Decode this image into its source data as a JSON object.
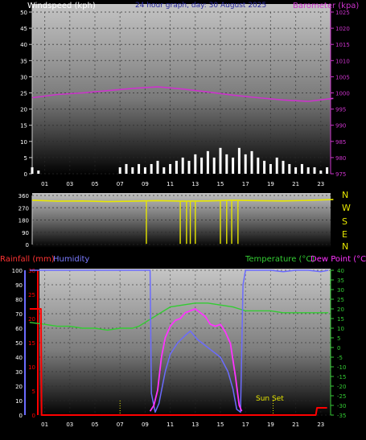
{
  "header": {
    "left": "Windspeed (kph)",
    "center": "24 hour graph, day:   30 August 2025",
    "right": "Barometer (kpa)"
  },
  "colors": {
    "windspeed": "#ffffff",
    "barometer": "#cc33cc",
    "wind_direction": "#e6e600",
    "rainfall": "#ff0000",
    "humidity": "#6b6bff",
    "temperature": "#33cc33",
    "dew_point": "#ff33ff",
    "sun_marker": "#e6e600"
  },
  "panel3_labels": {
    "rainfall": "Rainfall (mm)",
    "humidity": "Humidity",
    "temperature": "Temperature (°C)",
    "dew_point": "Dew Point (°C)",
    "sun_set": "Sun Set"
  },
  "compass_labels": [
    "N",
    "W",
    "S",
    "E",
    "N"
  ],
  "chart_data": [
    {
      "type": "line",
      "x_ticks": [
        "01",
        "03",
        "05",
        "07",
        "09",
        "11",
        "13",
        "15",
        "17",
        "19",
        "21",
        "23"
      ],
      "ylim_left": [
        0,
        50
      ],
      "yticks_left": [
        0,
        5,
        10,
        15,
        20,
        25,
        30,
        35,
        40,
        45,
        50
      ],
      "ylim_right": [
        975,
        1025
      ],
      "yticks_right": [
        975,
        980,
        985,
        990,
        995,
        1000,
        1005,
        1010,
        1015,
        1020,
        1025
      ],
      "series": [
        {
          "name": "Windspeed (kph)",
          "axis": "left",
          "x": [
            0,
            0.5,
            1,
            1.5,
            2,
            2.5,
            3,
            3.5,
            4,
            4.5,
            5,
            5.5,
            6,
            6.5,
            7,
            7.5,
            8,
            8.5,
            9,
            9.5,
            10,
            10.5,
            11,
            11.5,
            12,
            12.5,
            13,
            13.5,
            14,
            14.5,
            15,
            15.5,
            16,
            16.5,
            17,
            17.5,
            18,
            18.5,
            19,
            19.5,
            20,
            20.5,
            21,
            21.5,
            22,
            22.5,
            23,
            23.5
          ],
          "values": [
            2,
            1,
            0,
            0,
            0,
            0,
            0,
            0,
            0,
            0,
            0,
            0,
            0,
            0,
            2,
            3,
            2,
            3,
            2,
            3,
            4,
            2,
            3,
            4,
            5,
            4,
            6,
            5,
            7,
            5,
            8,
            6,
            5,
            8,
            6,
            7,
            5,
            4,
            3,
            5,
            4,
            3,
            2,
            3,
            2,
            2,
            1,
            2
          ]
        },
        {
          "name": "Barometer (kpa)",
          "axis": "right",
          "x": [
            0,
            2,
            4,
            6,
            8,
            10,
            12,
            14,
            16,
            18,
            20,
            22,
            24
          ],
          "values": [
            998.5,
            999.5,
            1000.0,
            1000.7,
            1001.4,
            1001.9,
            1001.2,
            1000.3,
            999.3,
            998.5,
            997.8,
            997.4,
            998.3
          ]
        }
      ]
    },
    {
      "type": "line",
      "ylim": [
        0,
        360
      ],
      "yticks": [
        0,
        90,
        180,
        270,
        360
      ],
      "series": [
        {
          "name": "Wind direction",
          "x": [
            0,
            2,
            4,
            6,
            8,
            10,
            12,
            14,
            16,
            18,
            20,
            22,
            24
          ],
          "values": [
            325,
            318,
            320,
            315,
            318,
            322,
            318,
            320,
            325,
            322,
            320,
            324,
            330
          ]
        }
      ],
      "dips_at_hours": [
        9.1,
        11.8,
        12.3,
        12.6,
        13.0,
        15.0,
        15.5,
        15.9,
        16.4
      ]
    },
    {
      "type": "line",
      "ylim_rain": [
        0,
        30
      ],
      "yticks_rain": [
        0,
        5,
        10,
        15,
        20,
        25,
        30
      ],
      "ylim_humidity": [
        0,
        100
      ],
      "yticks_humidity": [
        0,
        10,
        20,
        30,
        40,
        50,
        60,
        70,
        80,
        90,
        100
      ],
      "ylim_temperature": [
        -35,
        40
      ],
      "yticks_temperature": [
        40,
        35,
        30,
        25,
        20,
        15,
        10,
        5,
        0,
        -5,
        -10,
        -15,
        -20,
        -25,
        -30,
        -35
      ],
      "markers_hours": [
        7.0,
        19.2
      ],
      "series": [
        {
          "name": "Rainfall (mm)",
          "axis": "rain",
          "x": [
            -0.2,
            0.7,
            0.75,
            22.6,
            22.7,
            23.5
          ],
          "values": [
            22,
            22,
            0,
            0,
            1.5,
            1.5
          ]
        },
        {
          "name": "Humidity",
          "axis": "humidity",
          "x": [
            -0.2,
            9.4,
            9.5,
            9.8,
            10.1,
            10.6,
            11.0,
            11.6,
            12.2,
            12.6,
            13.2,
            13.8,
            14.4,
            15.0,
            15.6,
            16.0,
            16.3,
            16.6,
            16.8,
            17.0,
            18.0,
            19.0,
            20.0,
            21.0,
            22.0,
            23.0,
            23.6
          ],
          "values": [
            100,
            100,
            15,
            2,
            8,
            30,
            42,
            50,
            55,
            58,
            52,
            48,
            44,
            40,
            30,
            18,
            4,
            2,
            90,
            100,
            100,
            100,
            99,
            100,
            100,
            99,
            100
          ]
        },
        {
          "name": "Temperature (°C)",
          "axis": "temperature",
          "x": [
            -0.2,
            1,
            2,
            3,
            4,
            5,
            6,
            7,
            8,
            8.5,
            9,
            9.5,
            10,
            10.5,
            11,
            12,
            13,
            14,
            15,
            16,
            16.5,
            17,
            18,
            19,
            20,
            21,
            22,
            23,
            23.6
          ],
          "values": [
            13,
            12,
            11,
            11,
            10,
            10,
            9,
            10,
            10,
            11,
            13,
            15,
            17,
            19,
            21,
            22,
            23,
            23,
            22,
            21,
            20,
            19,
            19,
            19,
            18,
            18,
            18,
            18,
            18
          ]
        },
        {
          "name": "Dew Point (°C)",
          "axis": "temperature",
          "x": [
            9.4,
            9.7,
            10.0,
            10.3,
            10.6,
            11.0,
            11.4,
            11.8,
            12.2,
            12.6,
            13.0,
            13.4,
            13.8,
            14.2,
            14.6,
            15.0,
            15.4,
            15.8,
            16.2,
            16.5,
            16.7
          ],
          "values": [
            -33,
            -30,
            -22,
            -5,
            5,
            11,
            14,
            15,
            18,
            19,
            20,
            18,
            16,
            12,
            11,
            12,
            8,
            2,
            -15,
            -30,
            -33
          ]
        }
      ]
    }
  ]
}
